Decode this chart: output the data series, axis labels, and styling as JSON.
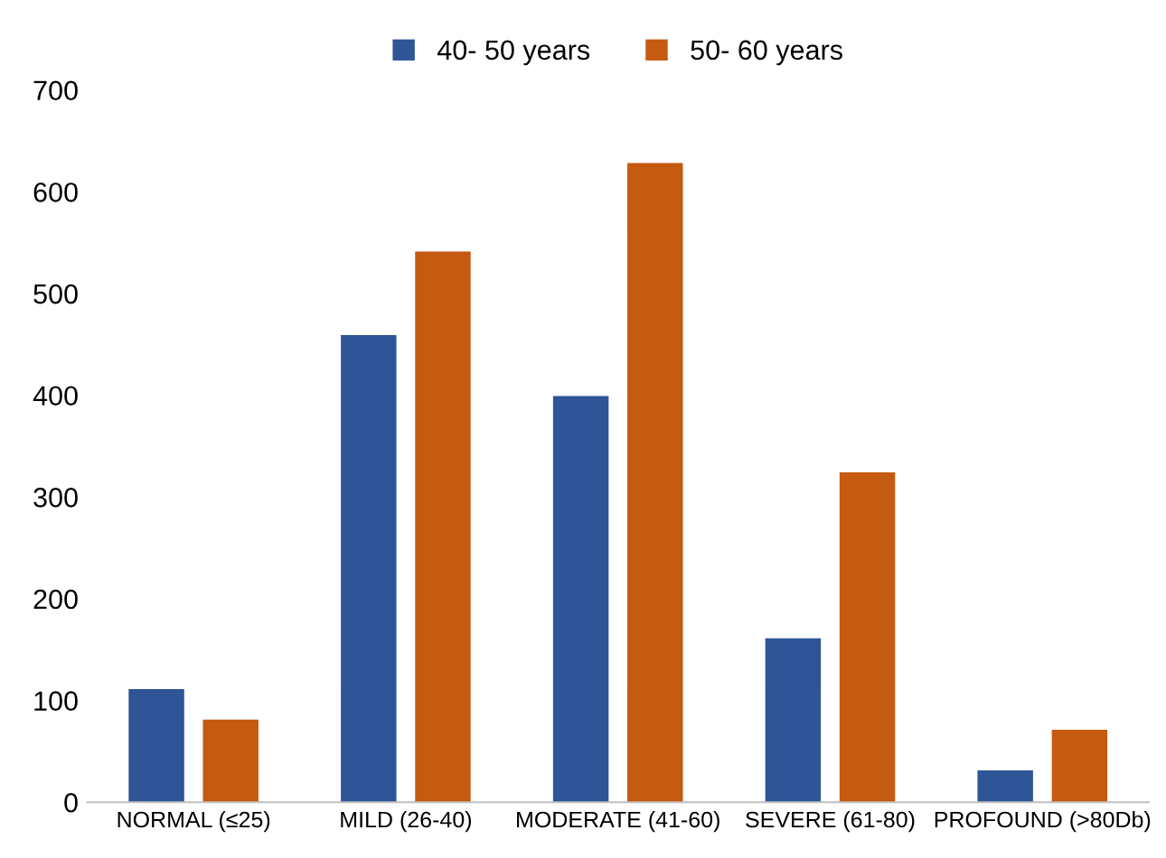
{
  "chart_data": {
    "type": "bar",
    "categories": [
      "NORMAL (≤25)",
      "MILD (26-40)",
      "MODERATE (41-60)",
      "SEVERE (61-80)",
      "PROFOUND (>80Db)"
    ],
    "series": [
      {
        "name": "40- 50 years",
        "color": "#2f5597",
        "values": [
          110,
          458,
          398,
          160,
          30
        ]
      },
      {
        "name": "50- 60 years",
        "color": "#c55a11",
        "values": [
          80,
          540,
          627,
          323,
          70
        ]
      }
    ],
    "ylim": [
      0,
      700
    ],
    "yticks": [
      0,
      100,
      200,
      300,
      400,
      500,
      600,
      700
    ],
    "grid": false,
    "legend": "top"
  }
}
